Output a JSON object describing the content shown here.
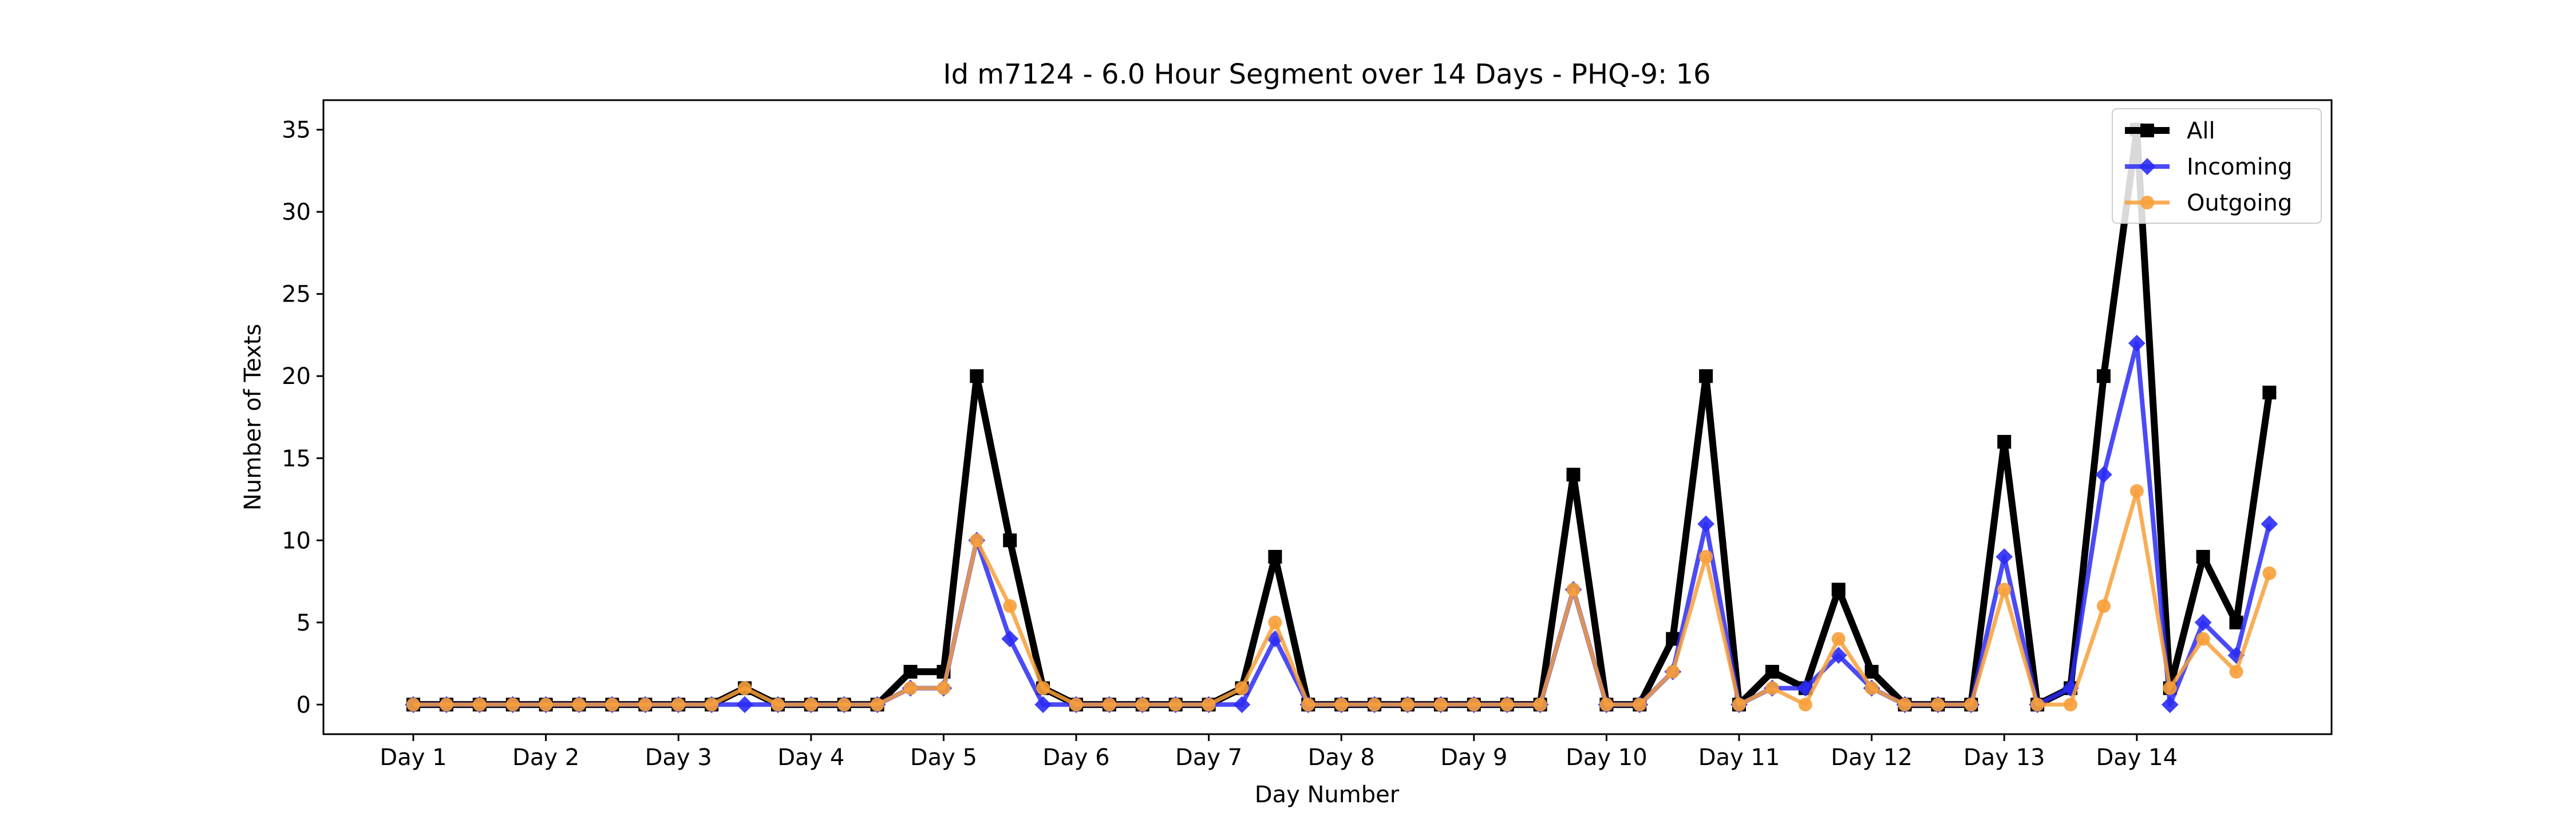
{
  "chart_data": {
    "type": "line",
    "title": "Id m7124 - 6.0 Hour Segment over 14 Days - PHQ-9: 16",
    "xlabel": "Day Number",
    "ylabel": "Number of Texts",
    "ylim": [
      -1.8,
      36.8
    ],
    "yticks": [
      0,
      5,
      10,
      15,
      20,
      25,
      30,
      35
    ],
    "xtick_labels": [
      "Day 1",
      "Day 2",
      "Day 3",
      "Day 4",
      "Day 5",
      "Day 6",
      "Day 7",
      "Day 8",
      "Day 9",
      "Day 10",
      "Day 11",
      "Day 12",
      "Day 13",
      "Day 14"
    ],
    "points_per_day": 4,
    "grid": false,
    "legend_position": "top-right",
    "series": [
      {
        "name": "All",
        "color": "#000000",
        "marker": "square",
        "values": [
          0,
          0,
          0,
          0,
          0,
          0,
          0,
          0,
          0,
          0,
          1,
          0,
          0,
          0,
          0,
          2,
          2,
          20,
          10,
          1,
          0,
          0,
          0,
          0,
          0,
          1,
          9,
          0,
          0,
          0,
          0,
          0,
          0,
          0,
          0,
          14,
          0,
          0,
          4,
          20,
          0,
          2,
          1,
          7,
          2,
          0,
          0,
          0,
          16,
          0,
          1,
          20,
          35,
          1,
          9,
          5,
          19
        ]
      },
      {
        "name": "Incoming",
        "color": "#2b2bf5",
        "marker": "diamond",
        "values": [
          0,
          0,
          0,
          0,
          0,
          0,
          0,
          0,
          0,
          0,
          0,
          0,
          0,
          0,
          0,
          1,
          1,
          10,
          4,
          0,
          0,
          0,
          0,
          0,
          0,
          0,
          4,
          0,
          0,
          0,
          0,
          0,
          0,
          0,
          0,
          7,
          0,
          0,
          2,
          11,
          0,
          1,
          1,
          3,
          1,
          0,
          0,
          0,
          9,
          0,
          1,
          14,
          22,
          0,
          5,
          3,
          11
        ]
      },
      {
        "name": "Outgoing",
        "color": "#f7a03a",
        "marker": "circle",
        "values": [
          0,
          0,
          0,
          0,
          0,
          0,
          0,
          0,
          0,
          0,
          1,
          0,
          0,
          0,
          0,
          1,
          1,
          10,
          6,
          1,
          0,
          0,
          0,
          0,
          0,
          1,
          5,
          0,
          0,
          0,
          0,
          0,
          0,
          0,
          0,
          7,
          0,
          0,
          2,
          9,
          0,
          1,
          0,
          4,
          1,
          0,
          0,
          0,
          7,
          0,
          0,
          6,
          13,
          1,
          4,
          2,
          8
        ]
      }
    ]
  }
}
